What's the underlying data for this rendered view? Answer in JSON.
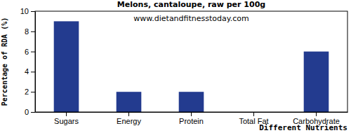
{
  "chart_data": {
    "type": "bar",
    "title": "Melons, cantaloupe, raw per 100g",
    "subtitle": "www.dietandfitnesstoday.com",
    "x_label": "Different Nutrients",
    "y_label": "Percentage of RDA (%)",
    "categories": [
      "Sugars",
      "Energy",
      "Protein",
      "Total Fat",
      "Carbohydrate"
    ],
    "values": [
      9,
      2,
      2,
      0,
      6
    ],
    "color": "#233b8f",
    "ylim": [
      0,
      10
    ],
    "yticks": [
      0,
      2,
      4,
      6,
      8,
      10
    ],
    "grid": false
  }
}
